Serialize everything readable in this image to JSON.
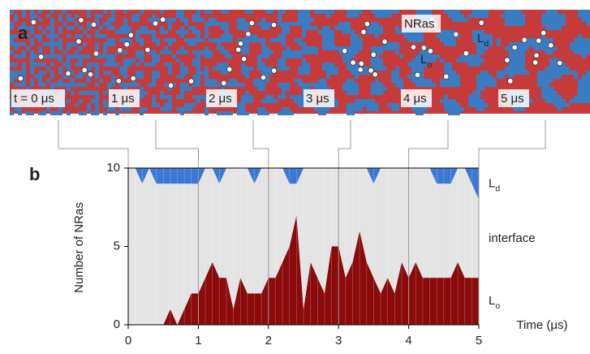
{
  "panel_labels": [
    "a",
    "b"
  ],
  "snapshot_labels": [
    "t = 0 μs",
    "1 μs",
    "2 μs",
    "3 μs",
    "4 μs",
    "5 μs"
  ],
  "snapshot_annotations": [
    "NRas",
    "Ld",
    "Lo"
  ],
  "chart_data": {
    "type": "stacked_area",
    "xlabel": "Time (μs)",
    "ylabel": "Number of NRas",
    "x": [
      0,
      0.1,
      0.2,
      0.3,
      0.4,
      0.5,
      0.6,
      0.7,
      0.8,
      0.9,
      1,
      1.1,
      1.2,
      1.3,
      1.4,
      1.5,
      1.6,
      1.7,
      1.8,
      1.9,
      2,
      2.1,
      2.2,
      2.3,
      2.4,
      2.5,
      2.6,
      2.7,
      2.8,
      2.9,
      3,
      3.1,
      3.2,
      3.3,
      3.4,
      3.5,
      3.6,
      3.7,
      3.8,
      3.9,
      4,
      4.1,
      4.2,
      4.3,
      4.4,
      4.5,
      4.6,
      4.7,
      4.8,
      4.9,
      5
    ],
    "series": [
      {
        "name": "Lo",
        "color": "#8b0a0a",
        "values": [
          0,
          0,
          0,
          0,
          0,
          0,
          1,
          0,
          1,
          2,
          2,
          3,
          4,
          3,
          3,
          1,
          3,
          2,
          2,
          2,
          3,
          3,
          4,
          5,
          7,
          1,
          4,
          3,
          2,
          5,
          5,
          3,
          4,
          6,
          4,
          3,
          2,
          3,
          2,
          4,
          3,
          4,
          3,
          3,
          3,
          3,
          3,
          4,
          3,
          3,
          3
        ]
      },
      {
        "name": "interface",
        "color": "#e4e4e4",
        "values": [
          10,
          10,
          9,
          10,
          9,
          9,
          8,
          9,
          8,
          7,
          7,
          7,
          6,
          6,
          7,
          9,
          7,
          8,
          7,
          8,
          7,
          7,
          6,
          4,
          2,
          9,
          6,
          7,
          8,
          5,
          5,
          7,
          6,
          4,
          6,
          6,
          8,
          7,
          8,
          6,
          7,
          6,
          7,
          7,
          6,
          6,
          6,
          6,
          7,
          6,
          5
        ]
      },
      {
        "name": "Ld",
        "color": "#3b78d4",
        "values": [
          0,
          0,
          1,
          0,
          1,
          1,
          1,
          1,
          1,
          1,
          1,
          0,
          0,
          1,
          0,
          0,
          0,
          0,
          1,
          0,
          0,
          0,
          0,
          1,
          1,
          0,
          0,
          0,
          0,
          0,
          0,
          0,
          0,
          0,
          0,
          1,
          0,
          0,
          0,
          0,
          0,
          0,
          0,
          0,
          1,
          1,
          1,
          0,
          0,
          1,
          2
        ]
      }
    ],
    "xlim": [
      0,
      5
    ],
    "xticks": [
      0,
      1,
      2,
      3,
      4,
      5
    ],
    "ylim": [
      0,
      10
    ],
    "yticks": [
      0,
      5,
      10
    ]
  }
}
